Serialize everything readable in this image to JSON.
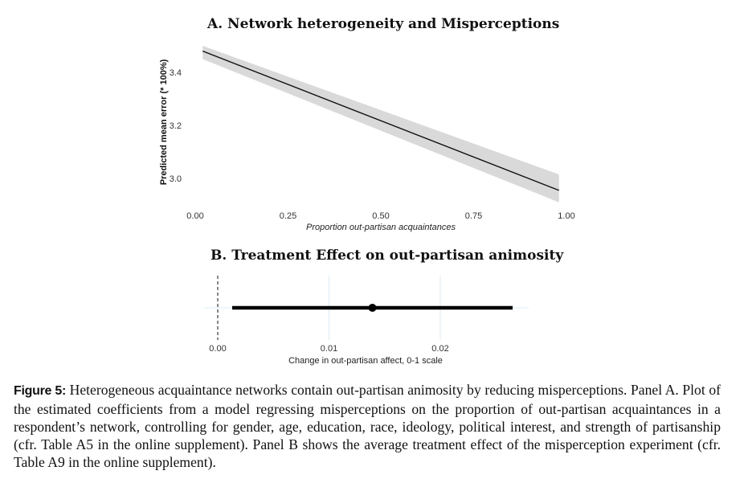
{
  "chart_data": [
    {
      "type": "line",
      "title": "A. Network heterogeneity and Misperceptions",
      "xlabel": "Proportion out-partisan acquaintances",
      "ylabel": "Predicted mean error (* 100%)",
      "xlim": [
        0,
        1
      ],
      "ylim": [
        2.9,
        3.5
      ],
      "xticks": [
        "0.00",
        "0.25",
        "0.50",
        "0.75",
        "1.00"
      ],
      "yticks": [
        "3.0",
        "3.2",
        "3.4"
      ],
      "x": [
        0.02,
        0.98
      ],
      "y": [
        3.48,
        2.955
      ],
      "ci_lower": [
        3.45,
        2.91
      ],
      "ci_upper": [
        3.5,
        3.015
      ],
      "grid": false
    },
    {
      "type": "scatter",
      "title": "B. Treatment Effect on out-partisan animosity",
      "xlabel": "Change in out-partisan affect, 0-1 scale",
      "xticks": [
        "0.00",
        "0.01",
        "0.02"
      ],
      "xlim": [
        -0.001,
        0.028
      ],
      "estimate": 0.0139,
      "ci": [
        0.0013,
        0.0265
      ],
      "reference_line": 0,
      "grid": true
    }
  ],
  "caption": {
    "label": "Figure 5:",
    "text": "Heterogeneous acquaintance networks contain out-partisan animosity by reducing misperceptions. Panel A. Plot of the estimated coefficients from a model regressing misperceptions on the proportion of out-partisan acquaintances in a respondent’s network, controlling for gender, age, education, race, ideology, political interest, and strength of partisanship (cfr. Table A5 in the online supplement). Panel B shows the average treatment effect of the misperception experiment (cfr. Table A9 in the online supplement)."
  }
}
